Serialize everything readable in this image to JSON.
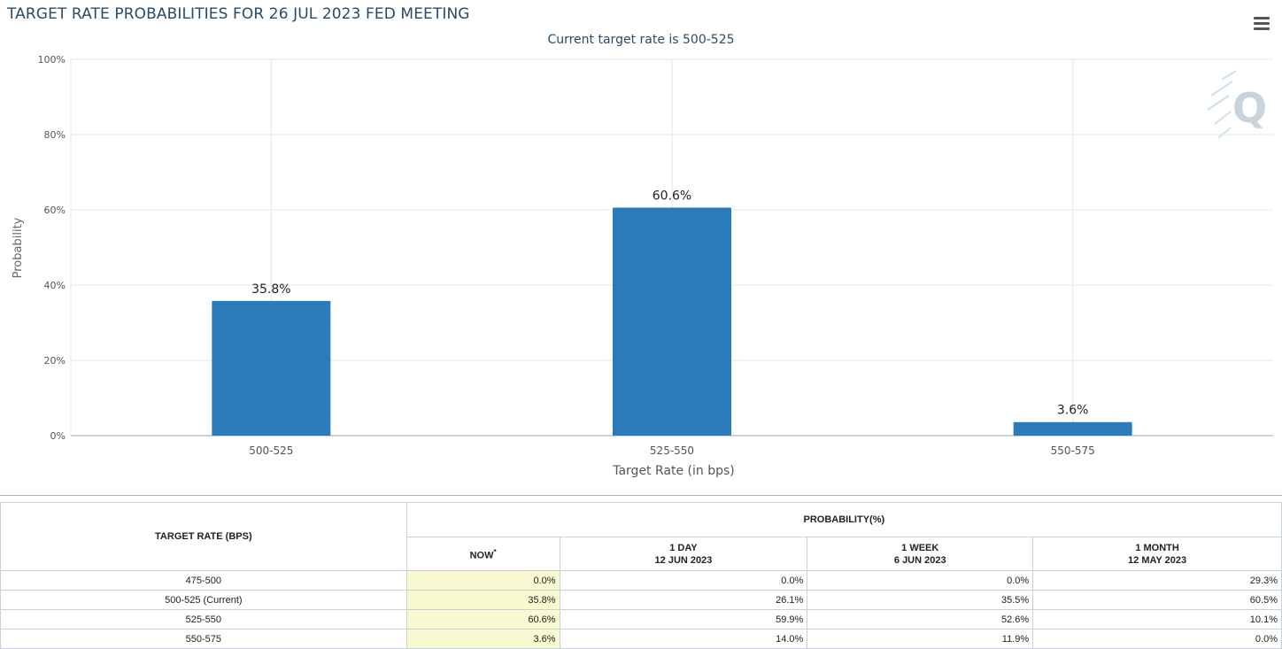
{
  "header": {
    "title": "TARGET RATE PROBABILITIES FOR 26 JUL 2023 FED MEETING",
    "subtitle": "Current target rate is 500-525",
    "menu_icon": "hamburger-menu-icon",
    "watermark_icon": "q-logo-icon"
  },
  "chart_data": {
    "type": "bar",
    "categories": [
      "500-525",
      "525-550",
      "550-575"
    ],
    "values": [
      35.8,
      60.6,
      3.6
    ],
    "data_labels": [
      "35.8%",
      "60.6%",
      "3.6%"
    ],
    "xlabel": "Target Rate (in bps)",
    "ylabel": "Probability",
    "ylim": [
      0,
      100
    ],
    "yticks": [
      "0%",
      "20%",
      "40%",
      "60%",
      "80%",
      "100%"
    ],
    "ytick_values": [
      0,
      20,
      40,
      60,
      80,
      100
    ],
    "grid": true,
    "bar_color": "#2b7bba"
  },
  "table": {
    "target_rate_header": "TARGET RATE (BPS)",
    "probability_header": "PROBABILITY(%)",
    "columns": [
      {
        "line1": "NOW",
        "line2": "",
        "marker": "*"
      },
      {
        "line1": "1 DAY",
        "line2": "12 JUN 2023",
        "marker": ""
      },
      {
        "line1": "1 WEEK",
        "line2": "6 JUN 2023",
        "marker": ""
      },
      {
        "line1": "1 MONTH",
        "line2": "12 MAY 2023",
        "marker": ""
      }
    ],
    "rows": [
      {
        "rate": "475-500",
        "values": [
          "0.0%",
          "0.0%",
          "0.0%",
          "29.3%"
        ]
      },
      {
        "rate": "500-525 (Current)",
        "values": [
          "35.8%",
          "26.1%",
          "35.5%",
          "60.5%"
        ]
      },
      {
        "rate": "525-550",
        "values": [
          "60.6%",
          "59.9%",
          "52.6%",
          "10.1%"
        ]
      },
      {
        "rate": "550-575",
        "values": [
          "3.6%",
          "14.0%",
          "11.9%",
          "0.0%"
        ]
      }
    ],
    "highlight_color": "#fafad2"
  }
}
